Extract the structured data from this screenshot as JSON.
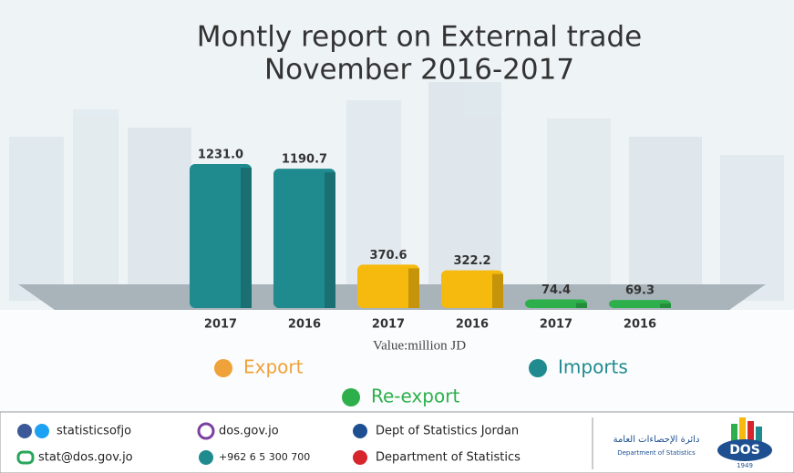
{
  "chart_data": {
    "type": "bar",
    "title_lines": [
      "Montly report on External trade",
      "November 2016-2017"
    ],
    "subtitle": "Value:million JD",
    "categories": [
      "2017",
      "2016"
    ],
    "series": [
      {
        "name": "Imports",
        "color": "#1f8b8f",
        "values": [
          1231.0,
          1190.7
        ],
        "value_labels": [
          "1231.0",
          "1190.7"
        ]
      },
      {
        "name": "Export",
        "color": "#f6b90d",
        "values": [
          370.6,
          322.2
        ]
      },
      {
        "name": "Re-export",
        "color": "#2db04b",
        "values": [
          74.4,
          69.3
        ]
      }
    ]
  },
  "footer": {
    "social": "statisticsofjo",
    "website": "dos.gov.jo",
    "linkedin": "Dept of Statistics Jordan",
    "email": "stat@dos.gov.jo",
    "phone": "+962 6 5 300 700",
    "youtube": "Department of Statistics"
  },
  "logo": {
    "arabic": "دائرة الإحصاءات العامة",
    "english": "Department of Statistics",
    "abbr": "DOS",
    "year": "1949"
  }
}
